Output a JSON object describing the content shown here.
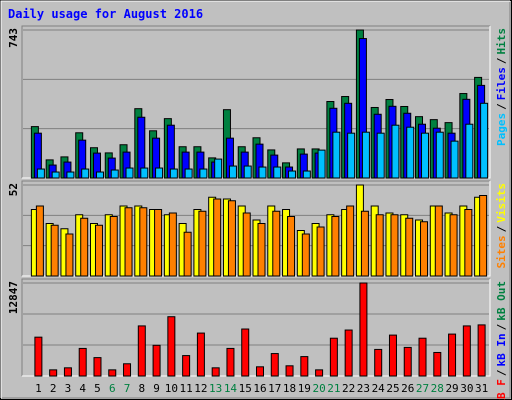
{
  "legend_separator": "/",
  "chart_data": [
    {
      "type": "bar",
      "title": "Daily usage for August 2016",
      "ylim": [
        0,
        743
      ],
      "yticks": [
        743
      ],
      "grid": true,
      "series": [
        {
          "name": "Pages",
          "color": "#00c0ff",
          "values": [
            45,
            30,
            30,
            45,
            30,
            40,
            50,
            50,
            50,
            45,
            45,
            45,
            95,
            60,
            60,
            55,
            55,
            35,
            35,
            140,
            230,
            225,
            230,
            225,
            265,
            255,
            225,
            230,
            185,
            270,
            375
          ]
        },
        {
          "name": "Files",
          "color": "#0000ff",
          "values": [
            225,
            65,
            80,
            190,
            125,
            100,
            130,
            305,
            200,
            265,
            130,
            130,
            80,
            200,
            130,
            170,
            115,
            55,
            120,
            125,
            350,
            375,
            700,
            320,
            360,
            325,
            270,
            250,
            225,
            395,
            465
          ]
        },
        {
          "name": "Hits",
          "color": "#008040",
          "values": [
            258,
            91,
            106,
            227,
            152,
            126,
            167,
            348,
            237,
            298,
            157,
            157,
            101,
            343,
            157,
            202,
            141,
            76,
            146,
            146,
            384,
            409,
            743,
            354,
            394,
            359,
            308,
            293,
            278,
            424,
            505
          ]
        }
      ]
    },
    {
      "type": "bar",
      "ylim": [
        0,
        52
      ],
      "yticks": [
        52
      ],
      "grid": true,
      "series": [
        {
          "name": "Sites",
          "color": "#ff8000",
          "values": [
            40,
            29,
            24,
            33,
            29,
            34,
            39,
            39,
            38,
            36,
            25,
            37,
            44,
            43,
            36,
            30,
            37,
            34,
            24,
            28,
            34,
            40,
            37,
            35,
            35,
            33,
            31,
            40,
            35,
            38,
            46
          ]
        },
        {
          "name": "Visits",
          "color": "#ffff00",
          "values": [
            38,
            30,
            27,
            35,
            30,
            35,
            40,
            40,
            38,
            35,
            30,
            38,
            45,
            44,
            40,
            32,
            40,
            38,
            26,
            30,
            35,
            38,
            52,
            40,
            36,
            35,
            32,
            40,
            36,
            40,
            45
          ]
        }
      ]
    },
    {
      "type": "bar",
      "ylim": [
        0,
        12847
      ],
      "yticks": [
        12847
      ],
      "grid": true,
      "categories": [
        "1",
        "2",
        "3",
        "4",
        "5",
        "6",
        "7",
        "8",
        "9",
        "10",
        "11",
        "12",
        "13",
        "14",
        "15",
        "16",
        "17",
        "18",
        "19",
        "20",
        "21",
        "22",
        "23",
        "24",
        "25",
        "26",
        "27",
        "28",
        "29",
        "30",
        "31"
      ],
      "category_colors": [
        "#000000",
        "#000000",
        "#000000",
        "#000000",
        "#000000",
        "#008040",
        "#008040",
        "#000000",
        "#000000",
        "#000000",
        "#000000",
        "#000000",
        "#008040",
        "#008040",
        "#000000",
        "#000000",
        "#000000",
        "#000000",
        "#000000",
        "#008040",
        "#008040",
        "#000000",
        "#000000",
        "#000000",
        "#000000",
        "#000000",
        "#008040",
        "#008040",
        "#000000",
        "#000000",
        "#000000"
      ],
      "series": [
        {
          "name": "kB F",
          "color": "#ff0000",
          "values": [
            5365,
            850,
            1130,
            3810,
            2540,
            850,
            1690,
            6920,
            4240,
            8190,
            2820,
            5930,
            1130,
            3810,
            6490,
            1270,
            3100,
            1410,
            2680,
            850,
            5220,
            6350,
            12847,
            3670,
            5650,
            3950,
            5220,
            3250,
            5790,
            6920,
            7060
          ]
        },
        {
          "name": "kB In",
          "color": "#0000ff"
        },
        {
          "name": "kB Out",
          "color": "#008040"
        }
      ]
    }
  ]
}
